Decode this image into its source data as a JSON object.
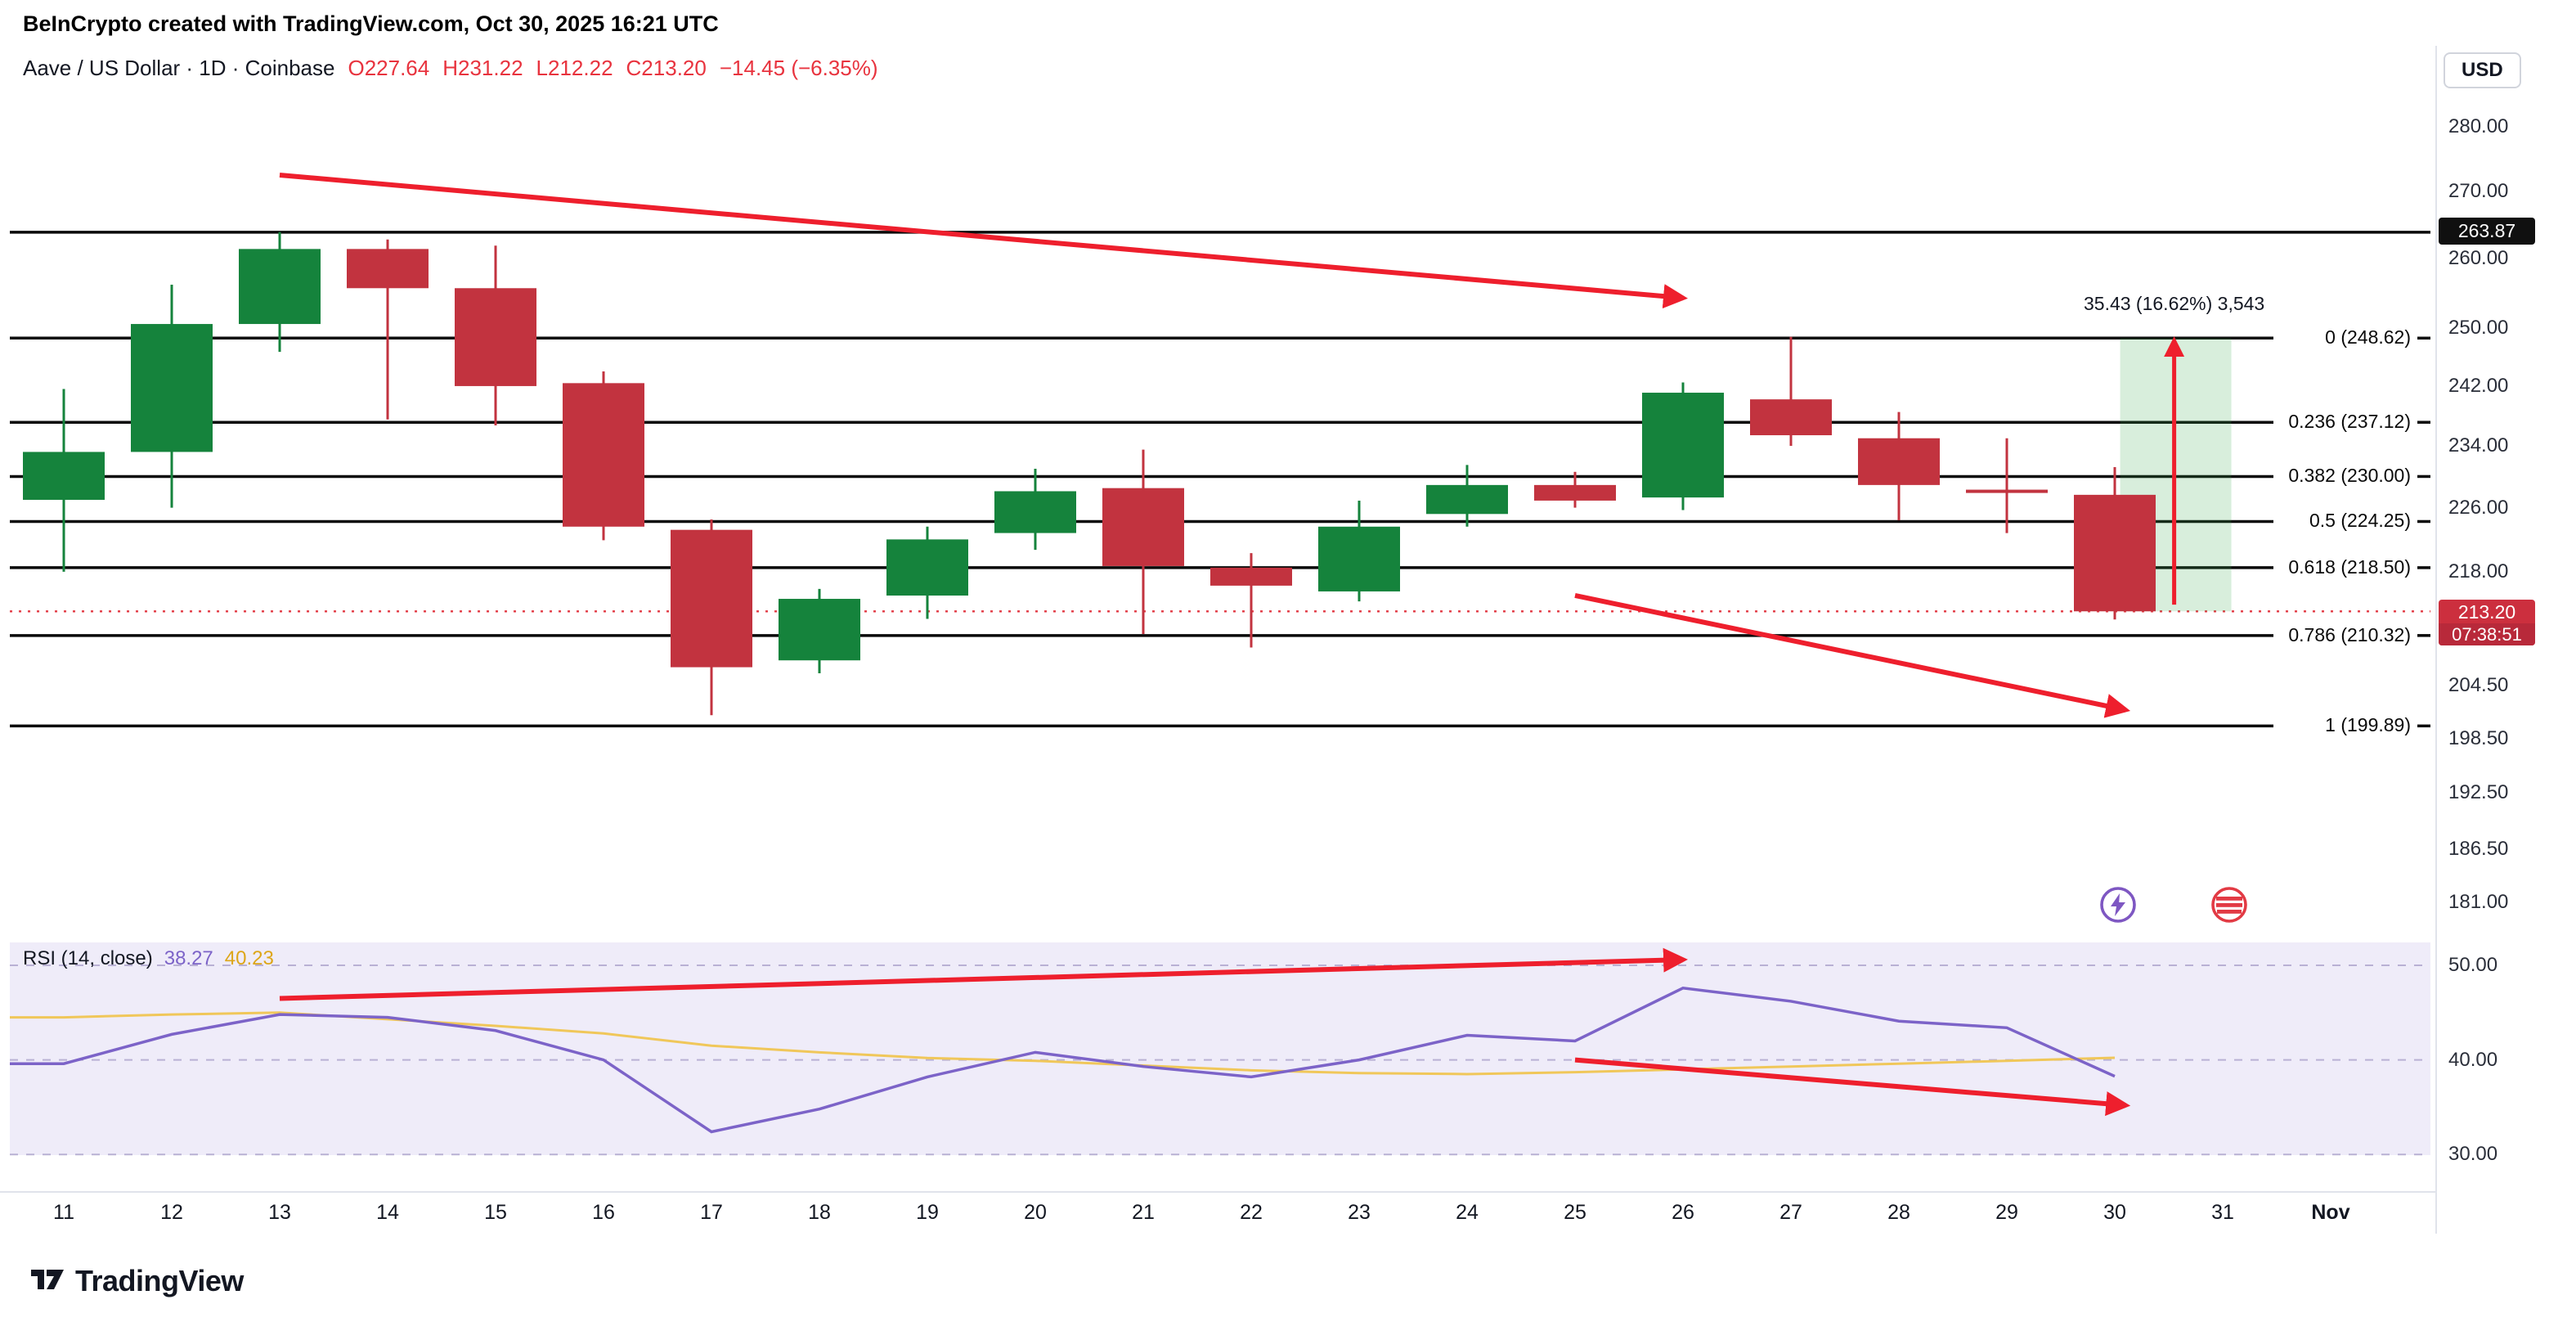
{
  "attribution": "BeInCrypto created with TradingView.com, Oct 30, 2025 16:21 UTC",
  "symbol": {
    "title": "Aave / US Dollar · 1D · Coinbase",
    "open": "O227.64",
    "high": "H231.22",
    "low": "L212.22",
    "close": "C213.20",
    "change": "−14.45 (−6.35%)"
  },
  "price_axis": {
    "currency_button": "USD",
    "ticks": [
      {
        "label": "280.00",
        "price": 280
      },
      {
        "label": "270.00",
        "price": 270
      },
      {
        "label": "260.00",
        "price": 260
      },
      {
        "label": "250.00",
        "price": 250
      },
      {
        "label": "242.00",
        "price": 242
      },
      {
        "label": "234.00",
        "price": 234
      },
      {
        "label": "226.00",
        "price": 226
      },
      {
        "label": "218.00",
        "price": 218
      },
      {
        "label": "204.50",
        "price": 204.5
      },
      {
        "label": "198.50",
        "price": 198.5
      },
      {
        "label": "192.50",
        "price": 192.5
      },
      {
        "label": "186.50",
        "price": 186.5
      },
      {
        "label": "181.00",
        "price": 181
      }
    ],
    "level_badge": {
      "label": "263.87",
      "price": 263.87
    },
    "last_badge": {
      "label": "213.20",
      "countdown": "07:38:51",
      "price": 213.2
    }
  },
  "levels": {
    "resistance": {
      "label": "263.87",
      "price": 263.87
    },
    "fibonacci": [
      {
        "label": "0 (248.62)",
        "price": 248.62
      },
      {
        "label": "0.236 (237.12)",
        "price": 237.12
      },
      {
        "label": "0.382 (230.00)",
        "price": 230.0
      },
      {
        "label": "0.5 (224.25)",
        "price": 224.25
      },
      {
        "label": "0.618 (218.50)",
        "price": 218.5
      },
      {
        "label": "0.786 (210.32)",
        "price": 210.32
      },
      {
        "label": "1 (199.89)",
        "price": 199.89
      }
    ]
  },
  "chart_data": {
    "type": "candlestick",
    "title": "Aave / US Dollar 1D Coinbase",
    "price_scale": "logarithmic",
    "last_price": 213.2,
    "candles": [
      {
        "date": "Oct 11",
        "day": 11,
        "o": 227.0,
        "h": 241.6,
        "l": 218.0,
        "c": 233.2
      },
      {
        "date": "Oct 12",
        "day": 12,
        "o": 233.2,
        "h": 256.2,
        "l": 226.0,
        "c": 250.6
      },
      {
        "date": "Oct 13",
        "day": 13,
        "o": 250.6,
        "h": 263.9,
        "l": 246.7,
        "c": 261.4
      },
      {
        "date": "Oct 14",
        "day": 14,
        "o": 261.4,
        "h": 262.8,
        "l": 237.5,
        "c": 255.7
      },
      {
        "date": "Oct 15",
        "day": 15,
        "o": 255.7,
        "h": 261.9,
        "l": 236.7,
        "c": 242.0
      },
      {
        "date": "Oct 16",
        "day": 16,
        "o": 242.4,
        "h": 244.0,
        "l": 221.9,
        "c": 223.6
      },
      {
        "date": "Oct 17",
        "day": 17,
        "o": 223.2,
        "h": 224.5,
        "l": 201.1,
        "c": 206.6
      },
      {
        "date": "Oct 18",
        "day": 18,
        "o": 207.4,
        "h": 215.9,
        "l": 205.9,
        "c": 214.7
      },
      {
        "date": "Oct 19",
        "day": 19,
        "o": 215.1,
        "h": 223.6,
        "l": 212.3,
        "c": 222.0
      },
      {
        "date": "Oct 20",
        "day": 20,
        "o": 222.8,
        "h": 231.0,
        "l": 220.7,
        "c": 228.1
      },
      {
        "date": "Oct 21",
        "day": 21,
        "o": 228.5,
        "h": 233.5,
        "l": 210.5,
        "c": 218.7
      },
      {
        "date": "Oct 22",
        "day": 22,
        "o": 218.5,
        "h": 220.3,
        "l": 208.9,
        "c": 216.3
      },
      {
        "date": "Oct 23",
        "day": 23,
        "o": 215.6,
        "h": 226.9,
        "l": 214.4,
        "c": 223.6
      },
      {
        "date": "Oct 24",
        "day": 24,
        "o": 225.2,
        "h": 231.5,
        "l": 223.6,
        "c": 228.9
      },
      {
        "date": "Oct 25",
        "day": 25,
        "o": 228.9,
        "h": 230.6,
        "l": 226.0,
        "c": 226.9
      },
      {
        "date": "Oct 26",
        "day": 26,
        "o": 227.3,
        "h": 242.5,
        "l": 225.7,
        "c": 241.1
      },
      {
        "date": "Oct 27",
        "day": 27,
        "o": 240.2,
        "h": 248.8,
        "l": 234.0,
        "c": 235.4
      },
      {
        "date": "Oct 28",
        "day": 28,
        "o": 235.0,
        "h": 238.5,
        "l": 224.4,
        "c": 228.9
      },
      {
        "date": "Oct 29",
        "day": 29,
        "o": 228.3,
        "h": 235.0,
        "l": 222.8,
        "c": 227.9
      },
      {
        "date": "Oct 30",
        "day": 30,
        "o": 227.64,
        "h": 231.22,
        "l": 212.22,
        "c": 213.2
      }
    ],
    "rsi": {
      "label": "RSI (14, close)",
      "value": "38.27",
      "ma_value": "40.23",
      "range": [
        30,
        50
      ],
      "ticks": [
        {
          "label": "50.00",
          "value": 50
        },
        {
          "label": "40.00",
          "value": 40
        },
        {
          "label": "30.00",
          "value": 30
        }
      ],
      "values": [
        39.6,
        42.7,
        44.8,
        44.5,
        43.1,
        40.0,
        32.4,
        34.8,
        38.2,
        40.8,
        39.3,
        38.2,
        40.0,
        42.6,
        42.0,
        47.6,
        46.2,
        44.1,
        43.4,
        38.27
      ],
      "ma_values": [
        44.5,
        44.8,
        45.0,
        44.3,
        43.6,
        42.8,
        41.5,
        40.8,
        40.2,
        39.9,
        39.4,
        38.9,
        38.6,
        38.5,
        38.7,
        39.0,
        39.3,
        39.6,
        39.9,
        40.23
      ]
    }
  },
  "annotations": {
    "measure_label": "35.43 (16.62%) 3,543",
    "projection": {
      "day_start": 30.05,
      "day_end": 31.08,
      "price_low": 213.2,
      "price_high": 248.62
    },
    "arrows_price": [
      {
        "from": {
          "day": 13.0,
          "price": 272.5
        },
        "to": {
          "day": 26.0,
          "price": 254.3
        }
      },
      {
        "from": {
          "day": 25.0,
          "price": 215.1
        },
        "to": {
          "day": 30.1,
          "price": 201.7
        }
      }
    ],
    "arrows_rsi": [
      {
        "from": {
          "day": 13.0,
          "rsi": 46.5
        },
        "to": {
          "day": 26.0,
          "rsi": 50.6
        }
      },
      {
        "from": {
          "day": 25.0,
          "rsi": 40.0
        },
        "to": {
          "day": 30.1,
          "rsi": 35.2
        }
      }
    ],
    "vertical_arrow": {
      "day": 30.55,
      "price_from": 214.0,
      "price_to": 248.3
    }
  },
  "x_axis": [
    {
      "label": "11",
      "day": 11
    },
    {
      "label": "12",
      "day": 12
    },
    {
      "label": "13",
      "day": 13
    },
    {
      "label": "14",
      "day": 14
    },
    {
      "label": "15",
      "day": 15
    },
    {
      "label": "16",
      "day": 16
    },
    {
      "label": "17",
      "day": 17
    },
    {
      "label": "18",
      "day": 18
    },
    {
      "label": "19",
      "day": 19
    },
    {
      "label": "20",
      "day": 20
    },
    {
      "label": "21",
      "day": 21
    },
    {
      "label": "22",
      "day": 22
    },
    {
      "label": "23",
      "day": 23
    },
    {
      "label": "24",
      "day": 24
    },
    {
      "label": "25",
      "day": 25
    },
    {
      "label": "26",
      "day": 26
    },
    {
      "label": "27",
      "day": 27
    },
    {
      "label": "28",
      "day": 28
    },
    {
      "label": "29",
      "day": 29
    },
    {
      "label": "30",
      "day": 30
    },
    {
      "label": "31",
      "day": 31
    },
    {
      "label": "Nov",
      "day": 32,
      "bold": true
    }
  ],
  "footer": {
    "logo_text": "TradingView"
  },
  "colors": {
    "up": "#15833c",
    "down": "#c2333f",
    "arrow": "#ee1f2d",
    "level": "#0a0a0a",
    "last_price": "#e23a44",
    "rsi_line": "#7c63c8",
    "rsi_ma": "#f0c75a",
    "rsi_bg": "#efecf9",
    "rsi_grid": "#b9b1d4",
    "projection_fill": "rgba(62,168,78,0.20)"
  }
}
